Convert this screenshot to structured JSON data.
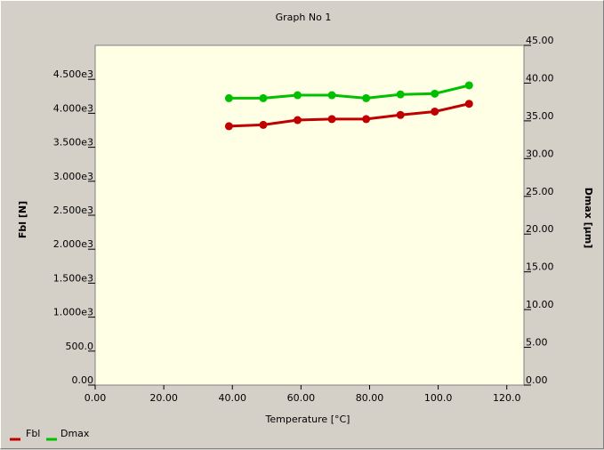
{
  "chart_data": {
    "type": "line",
    "title": "Graph No 1",
    "xlabel": "Temperature [°C]",
    "ylabel": "Fbl [N]",
    "y2label": "Dmax [µm]",
    "xlim": [
      0,
      125
    ],
    "ylim": [
      0,
      5000
    ],
    "y2lim": [
      0,
      45
    ],
    "xticks": [
      "0.00",
      "20.00",
      "40.00",
      "60.00",
      "80.00",
      "100.0",
      "120.0"
    ],
    "xtick_values": [
      0,
      20,
      40,
      60,
      80,
      100,
      120
    ],
    "yticks": [
      "0.00",
      "500.0",
      "1.000e3",
      "1.500e3",
      "2.000e3",
      "2.500e3",
      "3.000e3",
      "3.500e3",
      "4.000e3",
      "4.500e3"
    ],
    "ytick_values": [
      0,
      500,
      1000,
      1500,
      2000,
      2500,
      3000,
      3500,
      4000,
      4500
    ],
    "y2ticks": [
      "0.00",
      "5.00",
      "10.00",
      "15.00",
      "20.00",
      "25.00",
      "30.00",
      "35.00",
      "40.00",
      "45.00"
    ],
    "y2tick_values": [
      0,
      5,
      10,
      15,
      20,
      25,
      30,
      35,
      40,
      45
    ],
    "grid": false,
    "legend_position": "bottom-left",
    "series": [
      {
        "name": "Fbl",
        "axis": "left",
        "color": "#c00000",
        "x": [
          39,
          49,
          59,
          69,
          79,
          89,
          99,
          109
        ],
        "y": [
          3810,
          3830,
          3900,
          3915,
          3915,
          3975,
          4025,
          4140
        ]
      },
      {
        "name": "Dmax",
        "axis": "right",
        "color": "#00c000",
        "x": [
          39,
          49,
          59,
          69,
          79,
          89,
          99,
          109
        ],
        "y": [
          38.0,
          38.0,
          38.4,
          38.4,
          38.0,
          38.5,
          38.6,
          39.7
        ]
      }
    ]
  }
}
